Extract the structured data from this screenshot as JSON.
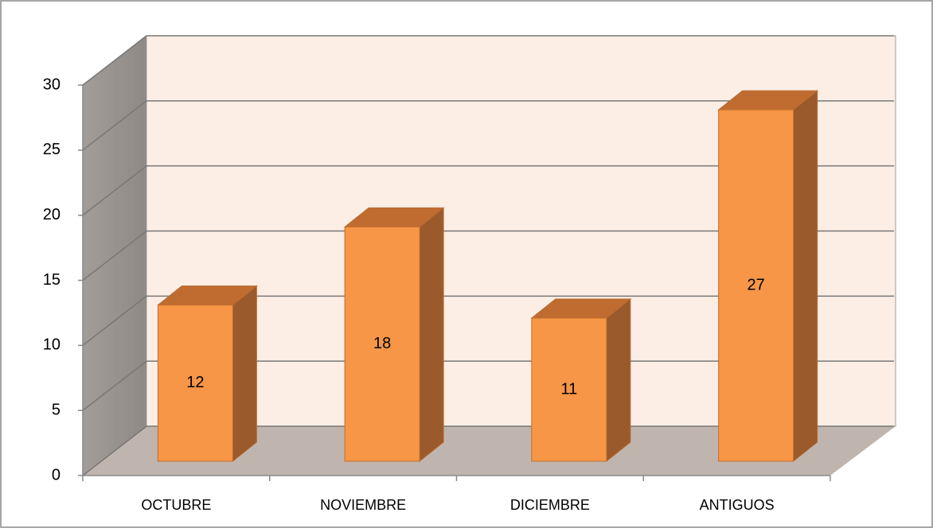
{
  "chart_data": {
    "type": "bar3d",
    "categories": [
      "OCTUBRE",
      "NOVIEMBRE",
      "DICIEMBRE",
      "ANTIGUOS"
    ],
    "values": [
      12,
      18,
      11,
      27
    ],
    "color": "#f79646",
    "ylim": [
      0,
      30
    ],
    "yticks": [
      0,
      5,
      10,
      15,
      20,
      25,
      30
    ],
    "grid": true
  }
}
